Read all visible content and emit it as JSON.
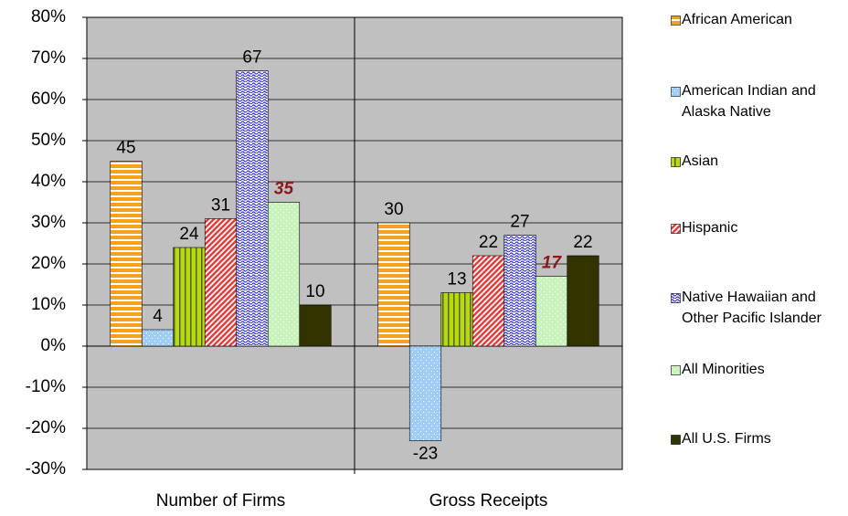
{
  "chart_data": {
    "type": "bar",
    "categories": [
      "Number of Firms",
      "Gross Receipts"
    ],
    "series": [
      {
        "name": "African American",
        "color": "#f7a21e",
        "values": [
          45,
          30
        ]
      },
      {
        "name": "American Indian and Alaska Native",
        "color": "#9fcdf5",
        "values": [
          4,
          -23
        ]
      },
      {
        "name": "Asian",
        "color": "#b5d817",
        "values": [
          24,
          13
        ]
      },
      {
        "name": "Hispanic",
        "color": "#e83a3a",
        "values": [
          31,
          22
        ]
      },
      {
        "name": "Native Hawaiian and Other Pacific Islander",
        "color": "#3333cc",
        "values": [
          67,
          27
        ]
      },
      {
        "name": "All Minorities",
        "color": "#c9f2bd",
        "values": [
          35,
          17
        ]
      },
      {
        "name": "All U.S. Firms",
        "color": "#333300",
        "values": [
          10,
          22
        ]
      }
    ],
    "ylim": [
      -30,
      80
    ],
    "yticks": [
      {
        "value": -30,
        "label": "-30%"
      },
      {
        "value": -20,
        "label": "-20%"
      },
      {
        "value": -10,
        "label": "-10%"
      },
      {
        "value": 0,
        "label": "0%"
      },
      {
        "value": 10,
        "label": "10%"
      },
      {
        "value": 20,
        "label": "20%"
      },
      {
        "value": 30,
        "label": "30%"
      },
      {
        "value": 40,
        "label": "40%"
      },
      {
        "value": 50,
        "label": "50%"
      },
      {
        "value": 60,
        "label": "60%"
      },
      {
        "value": 70,
        "label": "70%"
      },
      {
        "value": 80,
        "label": "80%"
      }
    ],
    "grid": true,
    "legend": "right"
  }
}
